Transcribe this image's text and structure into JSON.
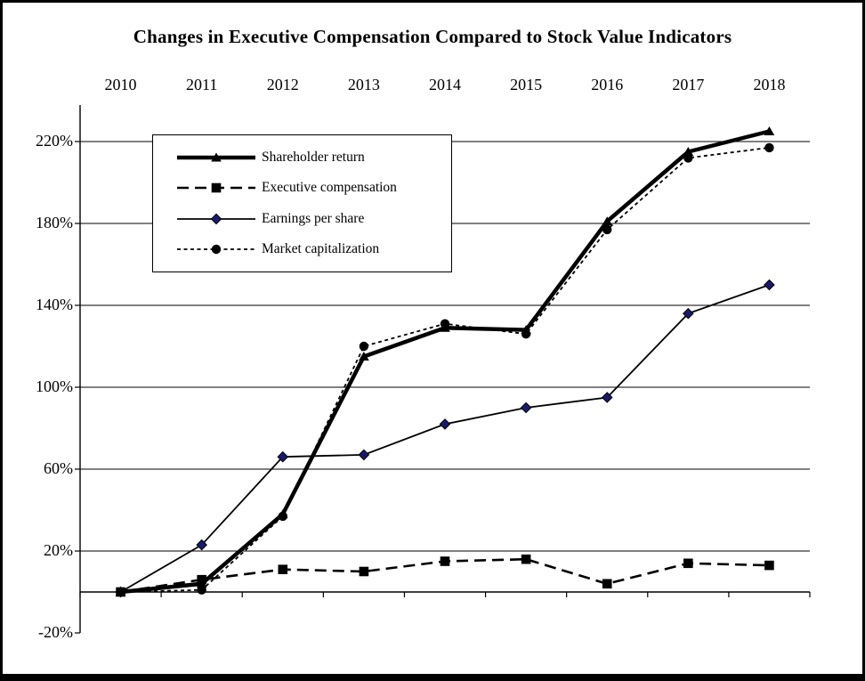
{
  "title": "Changes in Executive Compensation Compared to Stock Value Indicators",
  "colors": {
    "background": "#ffffff",
    "frame_border": "#000000",
    "axis": "#000000",
    "diamond_fill": "#1a1a6b"
  },
  "chart_data": {
    "type": "line",
    "title": "Changes in Executive Compensation Compared to Stock Value Indicators",
    "categories": [
      "2010",
      "2011",
      "2012",
      "2013",
      "2014",
      "2015",
      "2016",
      "2017",
      "2018"
    ],
    "xlabel": "",
    "ylabel": "",
    "unit": "%",
    "ylim": [
      -20,
      240
    ],
    "grid": "horizontal",
    "legend_position": "upper-left-inside",
    "y_axis": {
      "tick_values": [
        220,
        180,
        140,
        100,
        60,
        20,
        -20
      ],
      "tick_labels": [
        "220%",
        "180%",
        "140%",
        "100%",
        "60%",
        "20%",
        "-20%"
      ],
      "gridline_values": [
        220,
        180,
        140,
        100,
        60,
        20
      ]
    },
    "series": [
      {
        "name": "Shareholder return",
        "marker": "triangle",
        "line_style": "solid-thick",
        "color": "#000000",
        "values": [
          0,
          4,
          38,
          115,
          129,
          128,
          181,
          215,
          225
        ]
      },
      {
        "name": "Executive compensation",
        "marker": "square",
        "line_style": "dashed",
        "color": "#000000",
        "values": [
          0,
          6,
          11,
          10,
          15,
          16,
          4,
          14,
          13
        ]
      },
      {
        "name": "Earnings per share",
        "marker": "diamond",
        "line_style": "solid-thin",
        "color": "#000000",
        "marker_color": "#1a1a6b",
        "values": [
          0,
          23,
          66,
          67,
          82,
          90,
          95,
          136,
          150
        ]
      },
      {
        "name": "Market capitalization",
        "marker": "circle",
        "line_style": "dotted",
        "color": "#000000",
        "values": [
          0,
          1,
          37,
          120,
          131,
          126,
          177,
          212,
          217
        ]
      }
    ]
  }
}
